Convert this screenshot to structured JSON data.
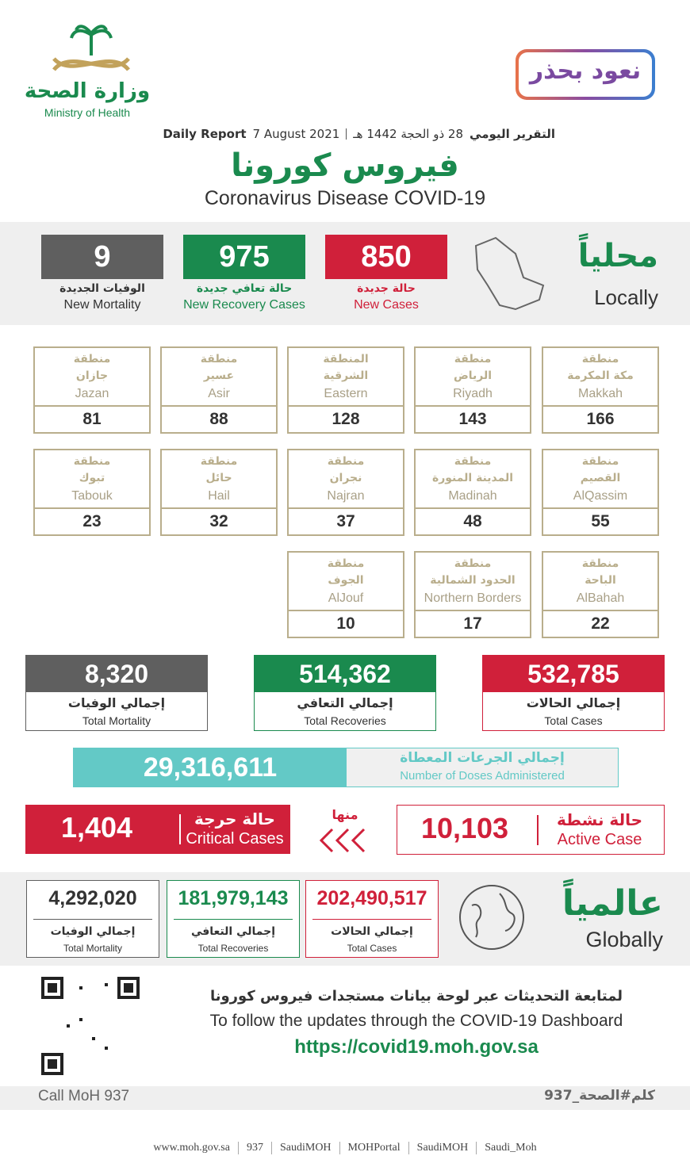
{
  "header": {
    "logo_ar": "وزارة الصحة",
    "logo_en": "Ministry of Health",
    "campaign": "نعود بحذر",
    "report_ar": "التقرير اليومي",
    "date_hijri": "28 ذو الحجة 1442 هـ",
    "date": "7 August 2021",
    "report_en": "Daily Report",
    "title_ar": "فيروس كورونا",
    "title_en": "Coronavirus Disease COVID-19"
  },
  "local": {
    "label_ar": "محلياً",
    "label_en": "Locally",
    "stats": [
      {
        "value": "850",
        "label_ar": "حالة جديدة",
        "label_en": "New Cases"
      },
      {
        "value": "975",
        "label_ar": "حالة تعافي جديدة",
        "label_en": "New Recovery Cases"
      },
      {
        "value": "9",
        "label_ar": "الوفيات الجديدة",
        "label_en": "New Mortality"
      }
    ]
  },
  "regions": [
    {
      "line1": "منطقة",
      "line2": "مكة المكرمة",
      "name_en": "Makkah",
      "value": "166"
    },
    {
      "line1": "منطقة",
      "line2": "الرياض",
      "name_en": "Riyadh",
      "value": "143"
    },
    {
      "line1": "المنطقة",
      "line2": "الشرقية",
      "name_en": "Eastern",
      "value": "128"
    },
    {
      "line1": "منطقة",
      "line2": "عسير",
      "name_en": "Asir",
      "value": "88"
    },
    {
      "line1": "منطقة",
      "line2": "جازان",
      "name_en": "Jazan",
      "value": "81"
    },
    {
      "line1": "منطقة",
      "line2": "القصيم",
      "name_en": "AlQassim",
      "value": "55"
    },
    {
      "line1": "منطقة",
      "line2": "المدينة المنورة",
      "name_en": "Madinah",
      "value": "48"
    },
    {
      "line1": "منطقة",
      "line2": "نجران",
      "name_en": "Najran",
      "value": "37"
    },
    {
      "line1": "منطقة",
      "line2": "حائل",
      "name_en": "Hail",
      "value": "32"
    },
    {
      "line1": "منطقة",
      "line2": "تبوك",
      "name_en": "Tabouk",
      "value": "23"
    },
    {
      "line1": "منطقة",
      "line2": "الباحة",
      "name_en": "AlBahah",
      "value": "22"
    },
    {
      "line1": "منطقة",
      "line2": "الحدود الشمالية",
      "name_en": "Northern Borders",
      "value": "17"
    },
    {
      "line1": "منطقة",
      "line2": "الجوف",
      "name_en": "AlJouf",
      "value": "10"
    }
  ],
  "totals": [
    {
      "value": "532,785",
      "label_ar": "إجمالي الحالات",
      "label_en": "Total Cases"
    },
    {
      "value": "514,362",
      "label_ar": "إجمالي التعافي",
      "label_en": "Total Recoveries"
    },
    {
      "value": "8,320",
      "label_ar": "إجمالي الوفيات",
      "label_en": "Total Mortality"
    }
  ],
  "doses": {
    "value": "29,316,611",
    "label_ar": "إجمالي الجرعات المعطاة",
    "label_en": "Number of Doses Administered"
  },
  "active": {
    "value": "10,103",
    "label_ar": "حالة نشطة",
    "label_en": "Active Case"
  },
  "of_which": "منها",
  "critical": {
    "value": "1,404",
    "label_ar": "حالة حرجة",
    "label_en": "Critical Cases"
  },
  "global": {
    "label_ar": "عالمياً",
    "label_en": "Globally",
    "stats": [
      {
        "value": "202,490,517",
        "label_ar": "إجمالي الحالات",
        "label_en": "Total Cases"
      },
      {
        "value": "181,979,143",
        "label_ar": "إجمالي التعافي",
        "label_en": "Total Recoveries"
      },
      {
        "value": "4,292,020",
        "label_ar": "إجمالي الوفيات",
        "label_en": "Total Mortality"
      }
    ]
  },
  "follow": {
    "text_ar": "لمتابعة التحديثات عبر لوحة بيانات مستجدات فيروس كورونا",
    "text_en": "To follow the updates through the COVID-19 Dashboard",
    "url": "https://covid19.moh.gov.sa"
  },
  "call": "Call MoH 937",
  "hashtag": "كلم#الصحة_937",
  "footer": [
    "www.moh.gov.sa",
    "937",
    "SaudiMOH",
    "MOHPortal",
    "SaudiMOH",
    "Saudi_Moh"
  ]
}
